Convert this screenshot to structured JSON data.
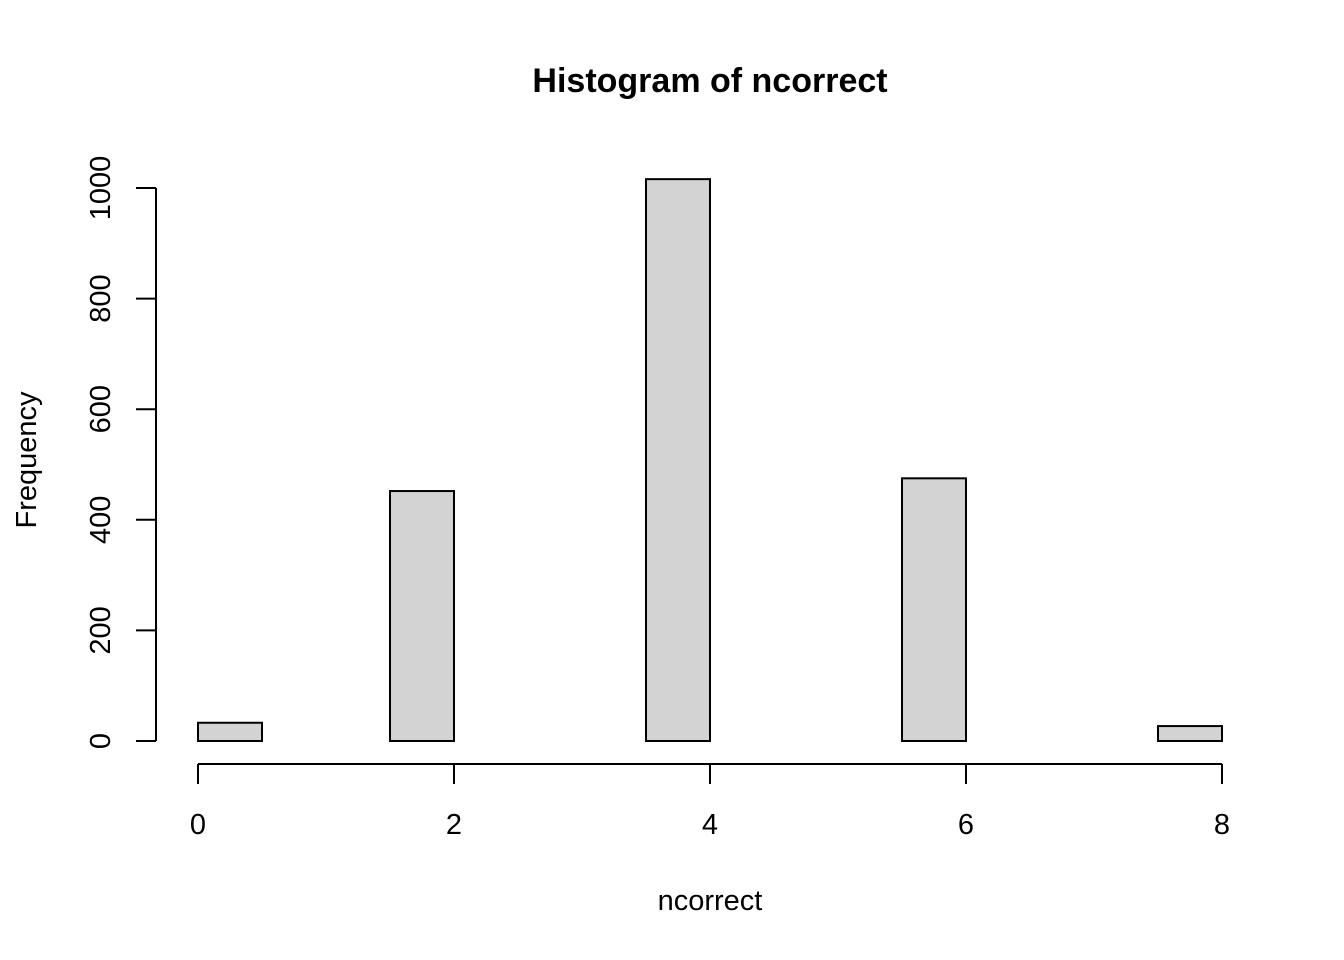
{
  "chart_data": {
    "type": "bar",
    "title": "Histogram of ncorrect",
    "xlabel": "ncorrect",
    "ylabel": "Frequency",
    "bar_fill": "#d3d3d3",
    "bar_stroke": "#000000",
    "xlim": [
      0,
      8
    ],
    "ylim": [
      0,
      1000
    ],
    "x_ticks": [
      0,
      2,
      4,
      6,
      8
    ],
    "y_ticks": [
      0,
      200,
      400,
      600,
      800,
      1000
    ],
    "bins": [
      {
        "start": 0.0,
        "end": 0.5,
        "count": 33
      },
      {
        "start": 0.5,
        "end": 1.0,
        "count": 0
      },
      {
        "start": 1.0,
        "end": 1.5,
        "count": 0
      },
      {
        "start": 1.5,
        "end": 2.0,
        "count": 452
      },
      {
        "start": 2.0,
        "end": 2.5,
        "count": 0
      },
      {
        "start": 2.5,
        "end": 3.0,
        "count": 0
      },
      {
        "start": 3.0,
        "end": 3.5,
        "count": 0
      },
      {
        "start": 3.5,
        "end": 4.0,
        "count": 1016
      },
      {
        "start": 4.0,
        "end": 4.5,
        "count": 0
      },
      {
        "start": 4.5,
        "end": 5.0,
        "count": 0
      },
      {
        "start": 5.0,
        "end": 5.5,
        "count": 0
      },
      {
        "start": 5.5,
        "end": 6.0,
        "count": 475
      },
      {
        "start": 6.0,
        "end": 6.5,
        "count": 0
      },
      {
        "start": 6.5,
        "end": 7.0,
        "count": 0
      },
      {
        "start": 7.0,
        "end": 7.5,
        "count": 0
      },
      {
        "start": 7.5,
        "end": 8.0,
        "count": 27
      }
    ],
    "grid": false,
    "legend": "none"
  }
}
